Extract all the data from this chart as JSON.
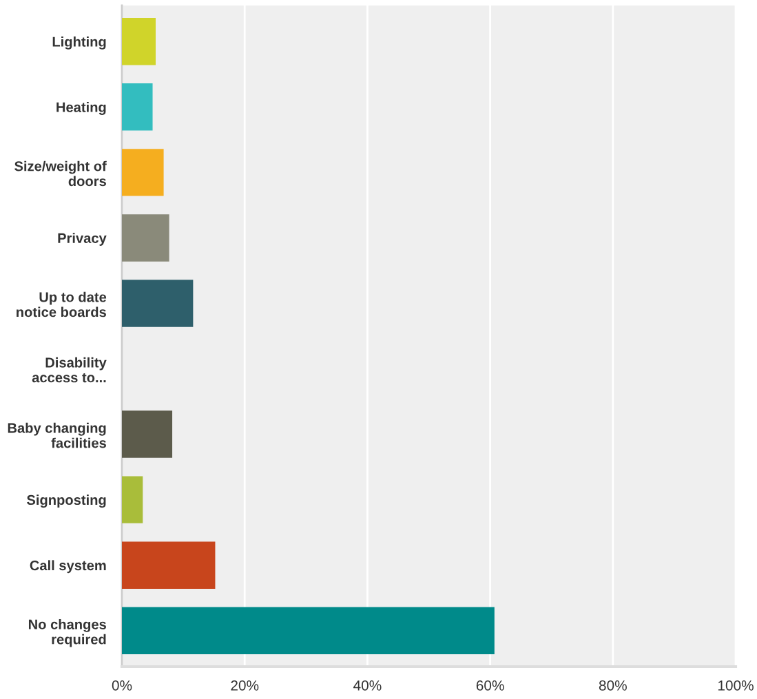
{
  "chart_data": {
    "type": "bar",
    "orientation": "horizontal",
    "categories": [
      "Lighting",
      "Heating",
      "Size/weight of\ndoors",
      "Privacy",
      "Up to date\nnotice boards",
      "Disability\naccess to...",
      "Baby changing\nfacilities",
      "Signposting",
      "Call system",
      "No changes\nrequired"
    ],
    "values": [
      5.5,
      5.0,
      6.8,
      7.7,
      11.6,
      0,
      8.2,
      3.4,
      15.2,
      60.7
    ],
    "colors": [
      "#d0d42a",
      "#33bdbf",
      "#f5ae1f",
      "#8a8a7a",
      "#2e5f6b",
      "#8e5a8a",
      "#5c5b4b",
      "#a9bd3a",
      "#c8451c",
      "#008a8a"
    ],
    "xlim": [
      0,
      100
    ],
    "xticks": [
      {
        "value": 0,
        "label": "0%"
      },
      {
        "value": 20,
        "label": "20%"
      },
      {
        "value": 40,
        "label": "40%"
      },
      {
        "value": 60,
        "label": "60%"
      },
      {
        "value": 80,
        "label": "80%"
      },
      {
        "value": 100,
        "label": "100%"
      }
    ],
    "grid": "x",
    "legend": false
  }
}
